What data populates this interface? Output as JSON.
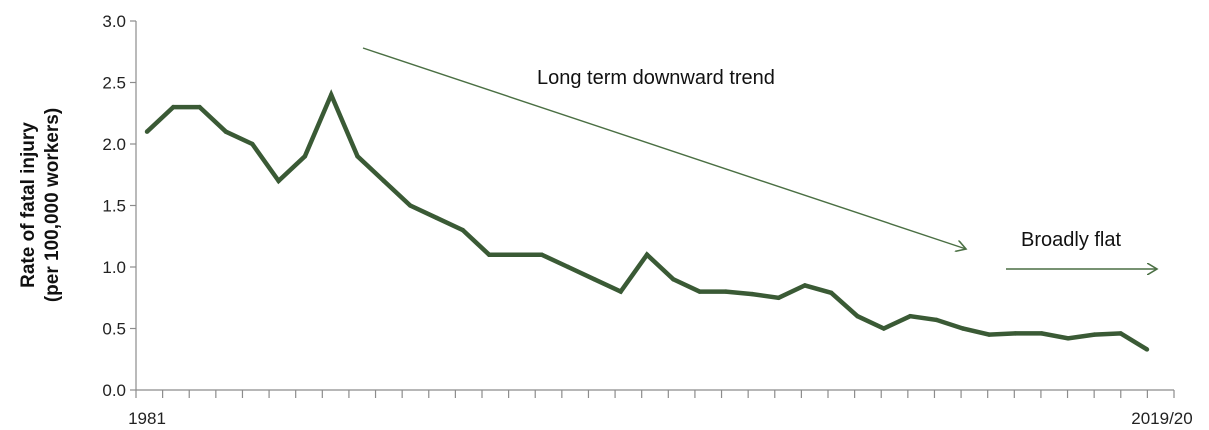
{
  "chart_data": {
    "type": "line",
    "title": "",
    "xlabel": "",
    "ylabel": [
      "Rate of fatal injury",
      "(per 100,000  workers)"
    ],
    "ylim": [
      0,
      3.0
    ],
    "y_ticks": [
      "0.0",
      "0.5",
      "1.0",
      "1.5",
      "2.0",
      "2.5",
      "3.0"
    ],
    "x_first_label": "1981",
    "x_last_label": "2019/20",
    "grid": false,
    "legend": "none",
    "line_color": "#3a5a35",
    "arrow_color": "#4a6f43",
    "series": [
      {
        "values": [
          2.1,
          2.3,
          2.3,
          2.1,
          2.0,
          1.7,
          1.9,
          2.4,
          1.9,
          1.7,
          1.5,
          1.4,
          1.3,
          1.1,
          1.1,
          1.1,
          1.0,
          0.9,
          0.8,
          1.1,
          0.9,
          0.8,
          0.8,
          0.78,
          0.75,
          0.85,
          0.79,
          0.6,
          0.5,
          0.6,
          0.57,
          0.5,
          0.45,
          0.46,
          0.46,
          0.42,
          0.45,
          0.46,
          0.33
        ]
      }
    ],
    "annotations": [
      {
        "text": "Long term downward trend"
      },
      {
        "text": "Broadly flat"
      }
    ]
  }
}
